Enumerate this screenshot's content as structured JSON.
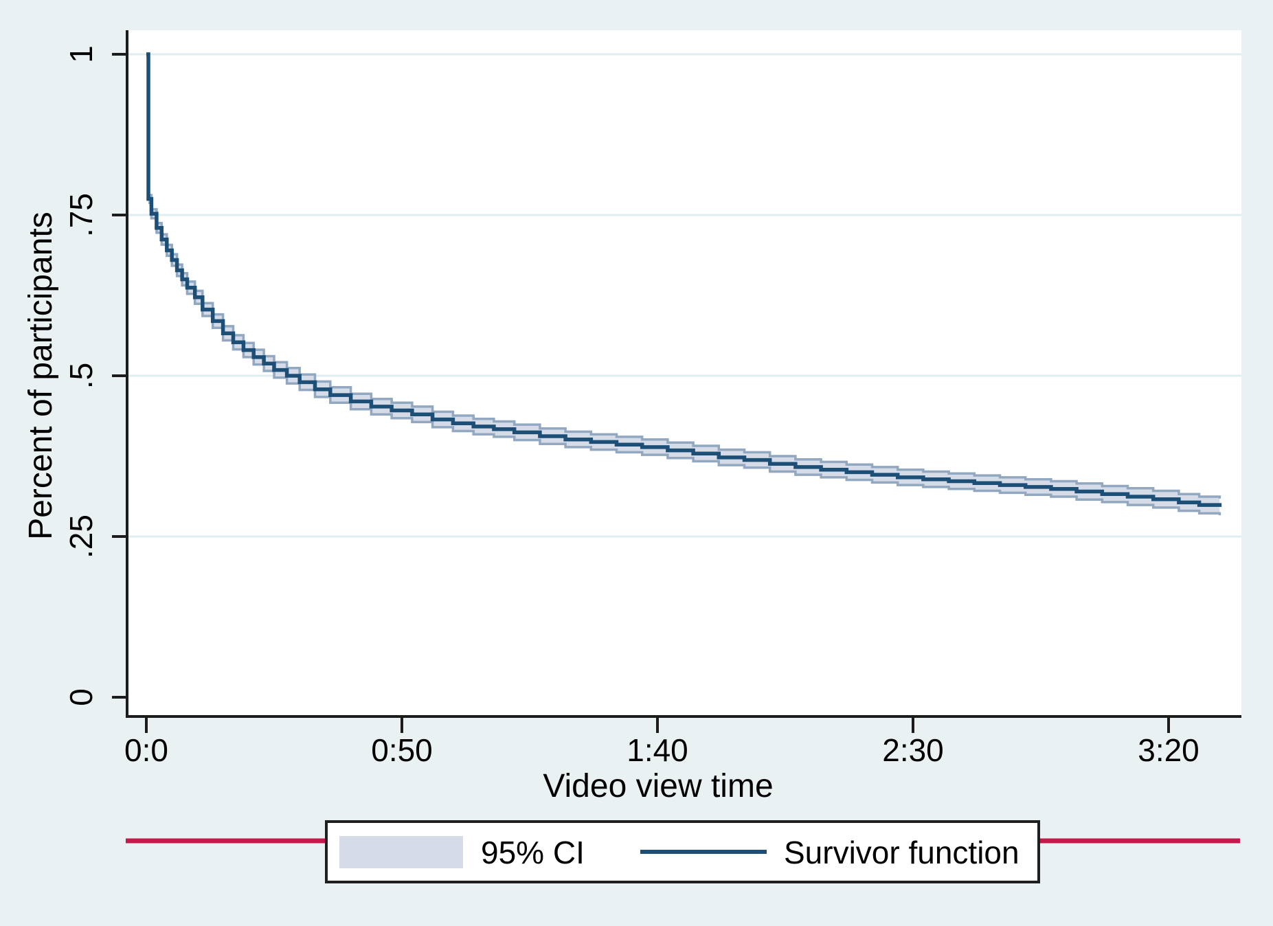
{
  "figure": {
    "background_color": "#eaf1f3",
    "plot_background_color": "#ffffff",
    "gridline_color": "#dfedf2",
    "axis_color": "#1c1c1c",
    "text_color": "#000000"
  },
  "colors": {
    "survivor_line": "#1d4f76",
    "ci_fill": "#d5dce8",
    "ci_edge": "#92a7c0",
    "red_rule": "#c41a4b",
    "legend_border": "#1f1f1f",
    "legend_background": "#ffffff"
  },
  "axes": {
    "x_title": "Video view time",
    "y_title": "Percent of participants"
  },
  "legend": {
    "ci_label": "95% CI",
    "line_label": "Survivor function"
  },
  "chart_data": {
    "type": "line",
    "subtype": "kaplan-meier-step-with-ci",
    "title": "",
    "xlabel": "Video view time",
    "ylabel": "Percent of participants",
    "x_unit": "minutes:seconds of video view time",
    "xlim_seconds": [
      0,
      214
    ],
    "ylim": [
      0,
      1
    ],
    "grid": "horizontal",
    "x_ticks": [
      {
        "t": 0,
        "label": "0:0"
      },
      {
        "t": 50,
        "label": "0:50"
      },
      {
        "t": 100,
        "label": "1:40"
      },
      {
        "t": 150,
        "label": "2:30"
      },
      {
        "t": 200,
        "label": "3:20"
      }
    ],
    "y_ticks": [
      {
        "v": 0,
        "label": "0"
      },
      {
        "v": 0.25,
        "label": ".25"
      },
      {
        "v": 0.5,
        "label": ".5"
      },
      {
        "v": 0.75,
        "label": ".75"
      },
      {
        "v": 1,
        "label": "1"
      }
    ],
    "legend_entries": [
      {
        "label": "95% CI",
        "type": "area"
      },
      {
        "label": "Survivor function",
        "type": "line"
      }
    ],
    "series": [
      {
        "name": "Survivor function",
        "step": "after",
        "point_format": [
          "time_seconds",
          "survival_proportion",
          "ci95_halfwidth"
        ],
        "points": [
          [
            0,
            1.0,
            0
          ],
          [
            0.4,
            0.775,
            0.006
          ],
          [
            1,
            0.752,
            0.007
          ],
          [
            2,
            0.73,
            0.0075
          ],
          [
            3,
            0.712,
            0.008
          ],
          [
            4,
            0.695,
            0.0085
          ],
          [
            5,
            0.68,
            0.009
          ],
          [
            6,
            0.664,
            0.009
          ],
          [
            7,
            0.65,
            0.0095
          ],
          [
            8,
            0.637,
            0.0095
          ],
          [
            9.5,
            0.622,
            0.01
          ],
          [
            11,
            0.603,
            0.01
          ],
          [
            13,
            0.585,
            0.0105
          ],
          [
            15,
            0.566,
            0.011
          ],
          [
            17,
            0.552,
            0.011
          ],
          [
            19,
            0.54,
            0.011
          ],
          [
            21,
            0.529,
            0.0115
          ],
          [
            23,
            0.519,
            0.0115
          ],
          [
            25,
            0.509,
            0.012
          ],
          [
            27.5,
            0.5,
            0.012
          ],
          [
            30,
            0.49,
            0.012
          ],
          [
            33,
            0.479,
            0.012
          ],
          [
            36,
            0.47,
            0.012
          ],
          [
            40,
            0.46,
            0.012
          ],
          [
            44,
            0.452,
            0.012
          ],
          [
            48,
            0.446,
            0.012
          ],
          [
            52,
            0.44,
            0.012
          ],
          [
            56,
            0.432,
            0.012
          ],
          [
            60,
            0.426,
            0.012
          ],
          [
            64,
            0.421,
            0.012
          ],
          [
            68,
            0.417,
            0.012
          ],
          [
            72,
            0.412,
            0.012
          ],
          [
            77,
            0.406,
            0.012
          ],
          [
            82,
            0.401,
            0.012
          ],
          [
            87,
            0.397,
            0.012
          ],
          [
            92,
            0.393,
            0.012
          ],
          [
            97,
            0.389,
            0.012
          ],
          [
            102,
            0.384,
            0.012
          ],
          [
            107,
            0.379,
            0.012
          ],
          [
            112,
            0.373,
            0.012
          ],
          [
            117,
            0.369,
            0.012
          ],
          [
            122,
            0.363,
            0.012
          ],
          [
            127,
            0.358,
            0.012
          ],
          [
            132,
            0.354,
            0.012
          ],
          [
            137,
            0.35,
            0.012
          ],
          [
            142,
            0.346,
            0.012
          ],
          [
            147,
            0.342,
            0.012
          ],
          [
            152,
            0.339,
            0.012
          ],
          [
            157,
            0.336,
            0.012
          ],
          [
            162,
            0.333,
            0.012
          ],
          [
            167,
            0.33,
            0.012
          ],
          [
            172,
            0.327,
            0.012
          ],
          [
            177,
            0.324,
            0.012
          ],
          [
            182,
            0.32,
            0.0125
          ],
          [
            187,
            0.316,
            0.0125
          ],
          [
            192,
            0.312,
            0.013
          ],
          [
            197,
            0.308,
            0.013
          ],
          [
            202,
            0.303,
            0.013
          ],
          [
            206,
            0.299,
            0.013
          ],
          [
            210,
            0.296,
            0.013
          ]
        ]
      }
    ]
  }
}
